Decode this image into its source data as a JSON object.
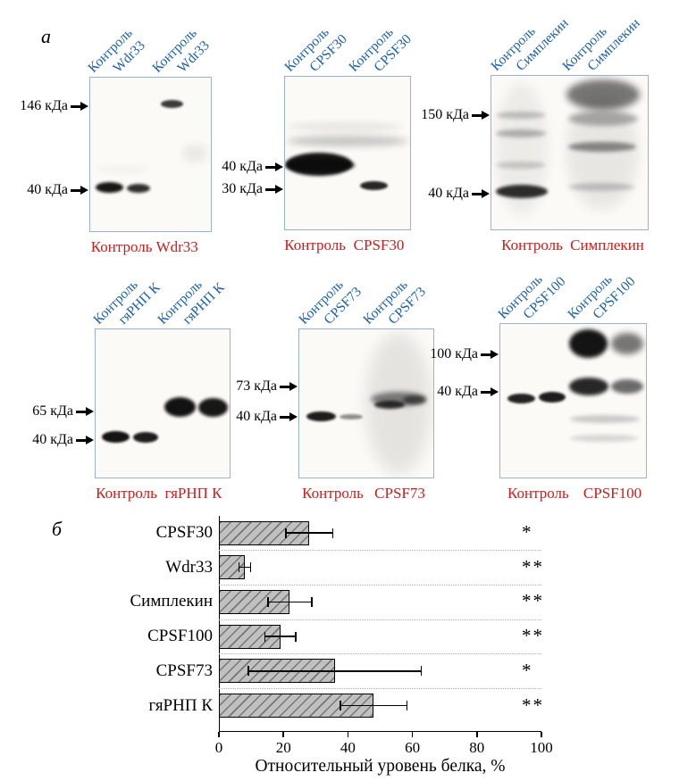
{
  "panels": {
    "a": "а",
    "b": "б"
  },
  "blots": [
    {
      "name": "Wdr33",
      "lane_labels": [
        "Контроль",
        "Wdr33",
        "Контроль",
        "Wdr33"
      ],
      "markers": [
        "146 кДа",
        "40 кДа"
      ],
      "bottom_labels": [
        "Контроль",
        "Wdr33"
      ]
    },
    {
      "name": "CPSF30",
      "lane_labels": [
        "Контроль",
        "CPSF30",
        "Контроль",
        "CPSF30"
      ],
      "markers": [
        "40 кДа",
        "30 кДа"
      ],
      "bottom_labels": [
        "Контроль",
        "CPSF30"
      ]
    },
    {
      "name": "Симплекин",
      "lane_labels": [
        "Контроль",
        "Симплекин",
        "Контроль",
        "Симплекин"
      ],
      "markers": [
        "150 кДа",
        "40 кДа"
      ],
      "bottom_labels": [
        "Контроль",
        "Симплекин"
      ]
    },
    {
      "name": "гяРНП К",
      "lane_labels": [
        "Контроль",
        "гяРНП К",
        "Контроль",
        "гяРНП К"
      ],
      "markers": [
        "65 кДа",
        "40 кДа"
      ],
      "bottom_labels": [
        "Контроль",
        "гяРНП К"
      ]
    },
    {
      "name": "CPSF73",
      "lane_labels": [
        "Контроль",
        "CPSF73",
        "Контроль",
        "CPSF73"
      ],
      "markers": [
        "73 кДа",
        "40 кДа"
      ],
      "bottom_labels": [
        "Контроль",
        "CPSF73"
      ]
    },
    {
      "name": "CPSF100",
      "lane_labels": [
        "Контроль",
        "CPSF100",
        "Контроль",
        "CPSF100"
      ],
      "markers": [
        "100 кДа",
        "40 кДа"
      ],
      "bottom_labels": [
        "Контроль",
        "CPSF100"
      ]
    }
  ],
  "chart_data": {
    "type": "bar",
    "orientation": "horizontal",
    "categories": [
      "CPSF30",
      "Wdr33",
      "Симплекин",
      "CPSF100",
      "CPSF73",
      "гяРНП К"
    ],
    "values": [
      28,
      8,
      22,
      19,
      36,
      48
    ],
    "errors": [
      7.5,
      2,
      7,
      5,
      27,
      10.5
    ],
    "significance": [
      "*",
      "**",
      "**",
      "**",
      "*",
      "**"
    ],
    "xticks": [
      0,
      20,
      40,
      60,
      80,
      100
    ],
    "xlim": [
      0,
      100
    ],
    "xlabel": "Относительный уровень белка, %",
    "grid": "dotted horizontal row separators",
    "legend": "none",
    "bar_fill": "#c0c0c0",
    "bar_hatch": "diagonal"
  },
  "colors": {
    "lane_label_blue": "#1a5fae",
    "condition_label_red": "#d01b1b",
    "frame_border_blue": "#9ab2d2"
  }
}
